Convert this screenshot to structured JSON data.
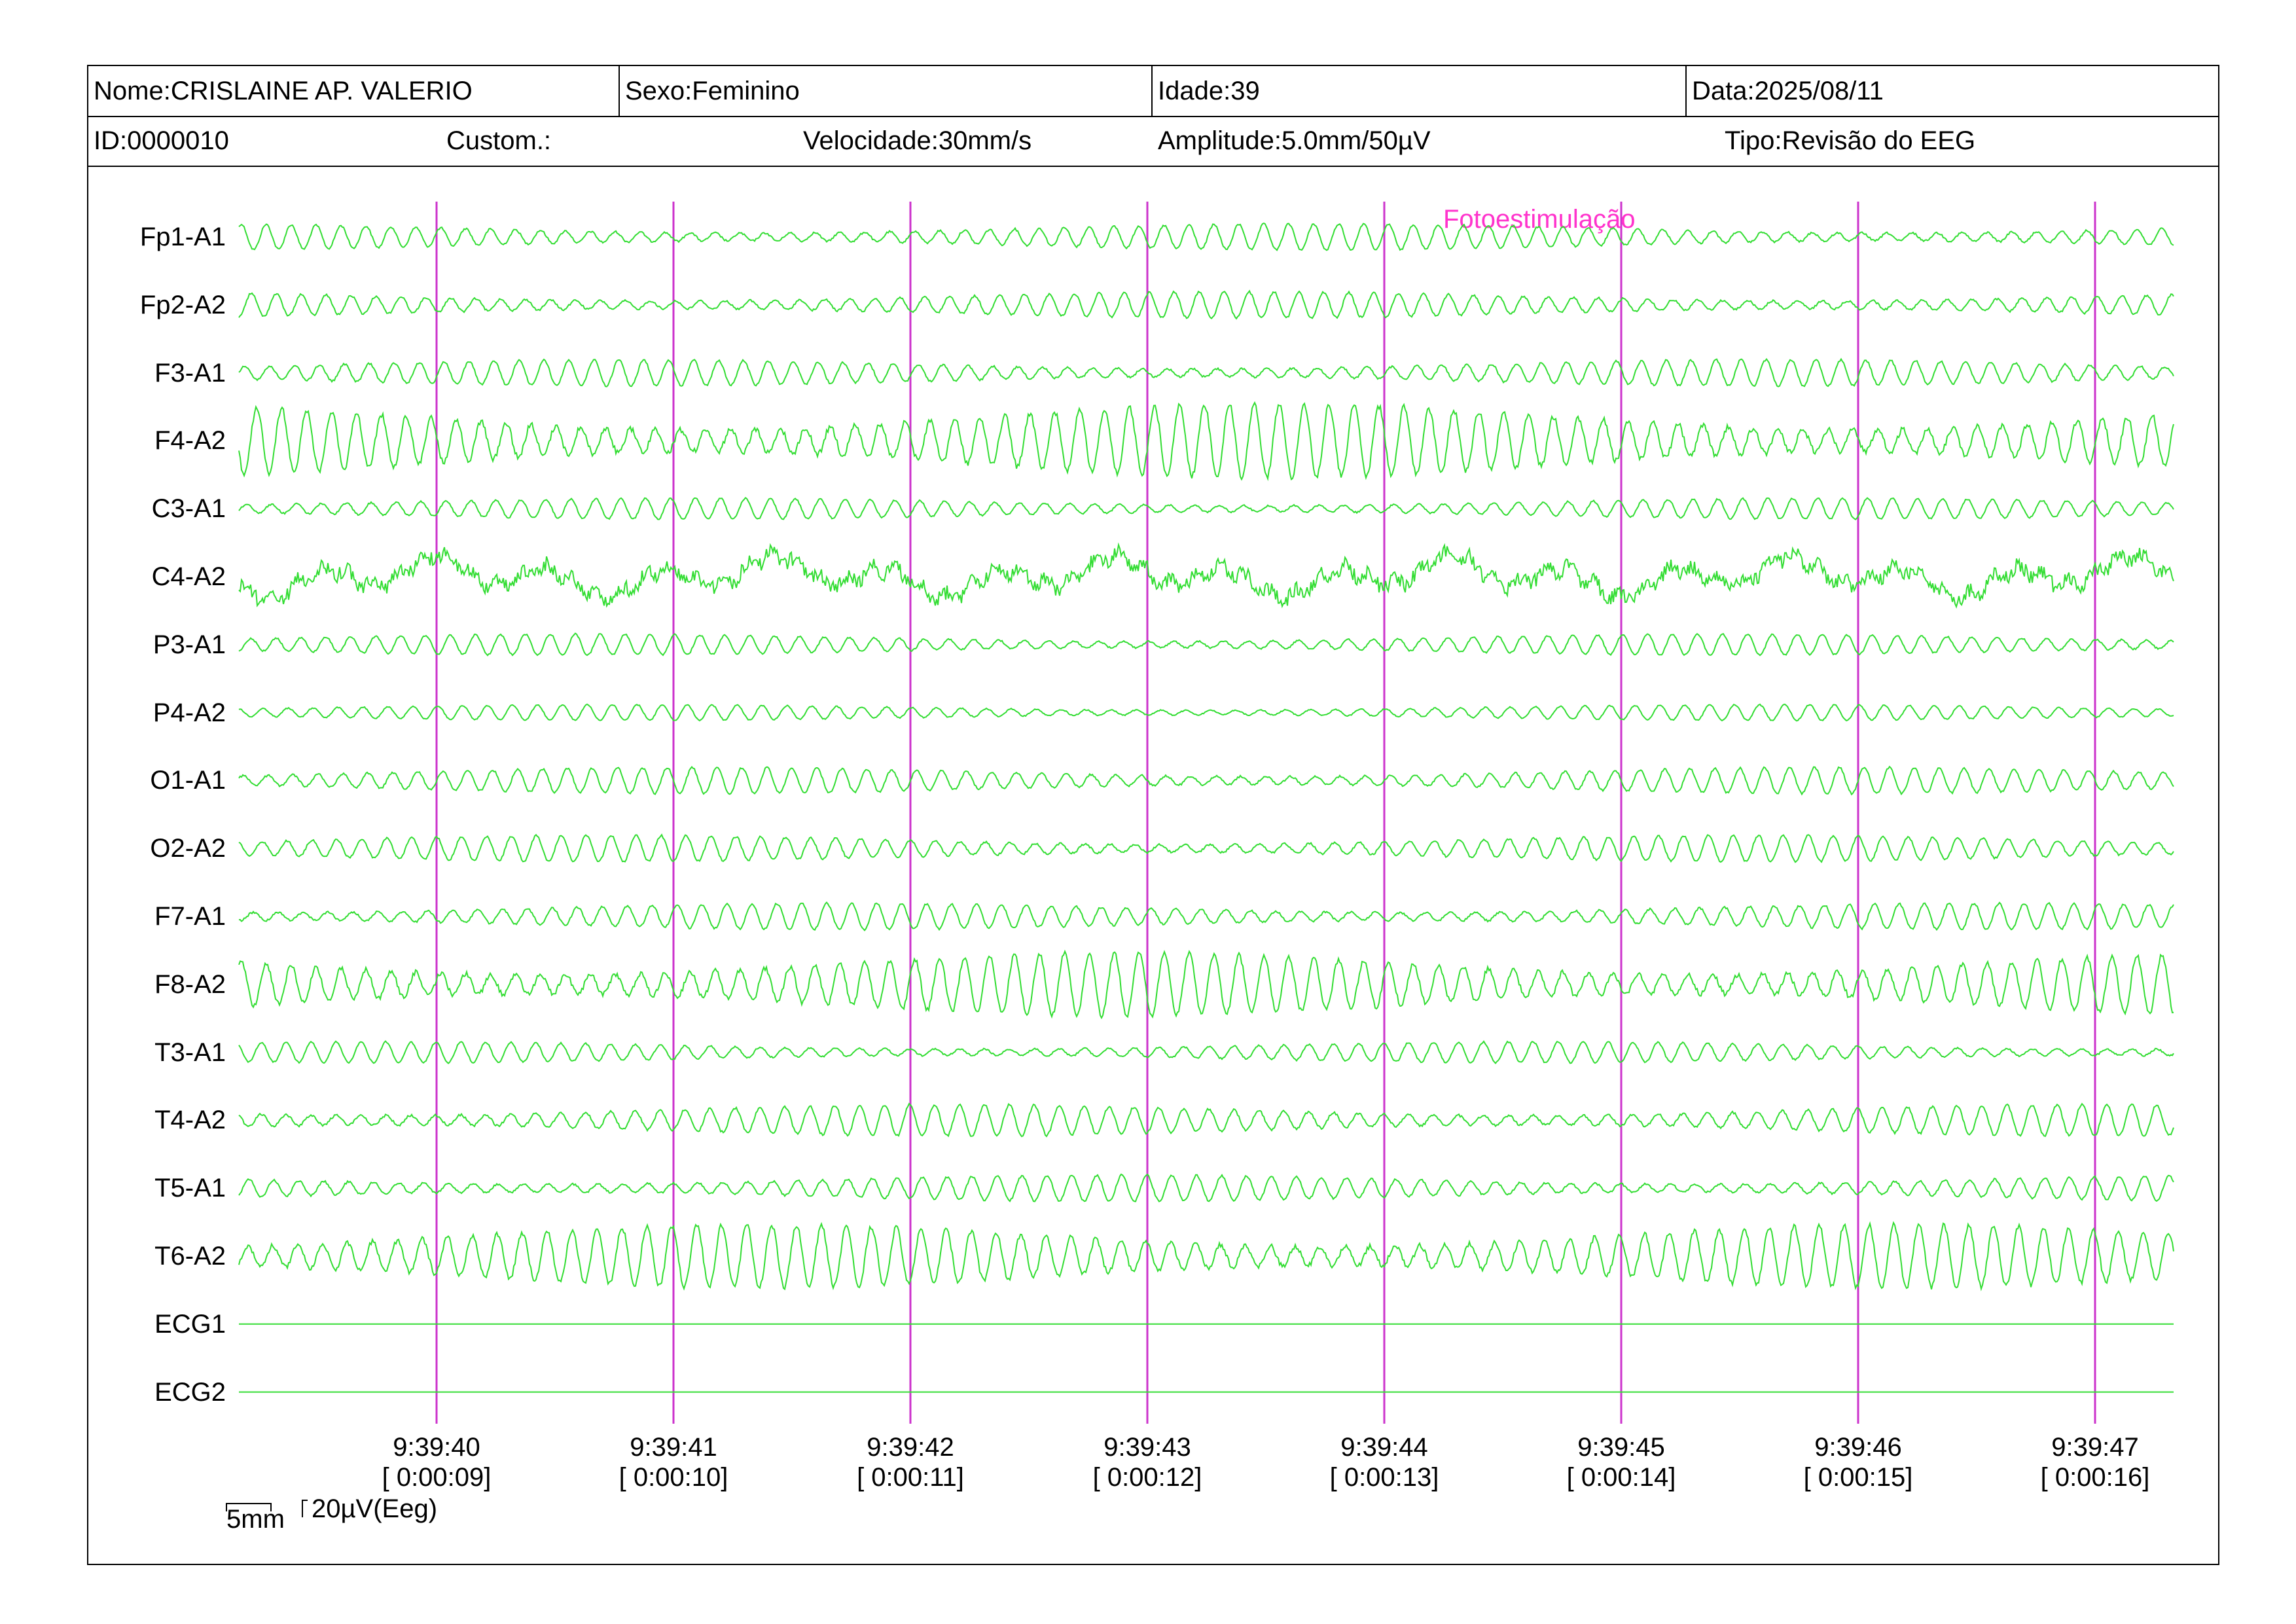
{
  "header": {
    "name": "Nome:CRISLAINE AP. VALERIO",
    "sex": "Sexo:Feminino",
    "age": "Idade:39",
    "date": "Data:2025/08/11",
    "id": "ID:0000010",
    "custom": "Custom.:",
    "speed": "Velocidade:30mm/s",
    "amplitude": "Amplitude:5.0mm/50µV",
    "type": "Tipo:Revisão do EEG"
  },
  "annotation": {
    "text": "Fotoestimulação",
    "color": "#ff33cc"
  },
  "colors": {
    "trace": "#33dd33",
    "marker": "#cc33cc",
    "annotation": "#ff33cc"
  },
  "scale_bar": {
    "time": "5mm",
    "amplitude": "20µV(Eeg)"
  },
  "chart_data": {
    "type": "line",
    "title": "",
    "sampling": "EEG traces, 30mm/s, 5.0mm/50µV",
    "channels": [
      {
        "name": "Fp1-A1",
        "amplitude": 0.5,
        "freq": 9.5
      },
      {
        "name": "Fp2-A2",
        "amplitude": 0.5,
        "freq": 9.5
      },
      {
        "name": "F3-A1",
        "amplitude": 0.5,
        "freq": 9.5
      },
      {
        "name": "F4-A2",
        "amplitude": 1.4,
        "freq": 9.5
      },
      {
        "name": "C3-A1",
        "amplitude": 0.4,
        "freq": 9.5
      },
      {
        "name": "C4-A2",
        "amplitude": 0.9,
        "freq": 3.0
      },
      {
        "name": "P3-A1",
        "amplitude": 0.4,
        "freq": 9.5
      },
      {
        "name": "P4-A2",
        "amplitude": 0.3,
        "freq": 9.5
      },
      {
        "name": "O1-A1",
        "amplitude": 0.5,
        "freq": 9.5
      },
      {
        "name": "O2-A2",
        "amplitude": 0.5,
        "freq": 9.5
      },
      {
        "name": "F7-A1",
        "amplitude": 0.5,
        "freq": 9.5
      },
      {
        "name": "F8-A2",
        "amplitude": 1.2,
        "freq": 9.5
      },
      {
        "name": "T3-A1",
        "amplitude": 0.4,
        "freq": 9.5
      },
      {
        "name": "T4-A2",
        "amplitude": 0.6,
        "freq": 9.5
      },
      {
        "name": "T5-A1",
        "amplitude": 0.5,
        "freq": 9.5
      },
      {
        "name": "T6-A2",
        "amplitude": 1.2,
        "freq": 9.5
      },
      {
        "name": "ECG1",
        "amplitude": 0,
        "freq": 0
      },
      {
        "name": "ECG2",
        "amplitude": 0,
        "freq": 0
      }
    ],
    "time_markers": [
      {
        "clock": "9:39:40",
        "elapsed": "[ 0:00:09]"
      },
      {
        "clock": "9:39:41",
        "elapsed": "[ 0:00:10]"
      },
      {
        "clock": "9:39:42",
        "elapsed": "[ 0:00:11]"
      },
      {
        "clock": "9:39:43",
        "elapsed": "[ 0:00:12]"
      },
      {
        "clock": "9:39:44",
        "elapsed": "[ 0:00:13]"
      },
      {
        "clock": "9:39:45",
        "elapsed": "[ 0:00:14]"
      },
      {
        "clock": "9:39:46",
        "elapsed": "[ 0:00:15]"
      },
      {
        "clock": "9:39:47",
        "elapsed": "[ 0:00:16]"
      }
    ]
  }
}
